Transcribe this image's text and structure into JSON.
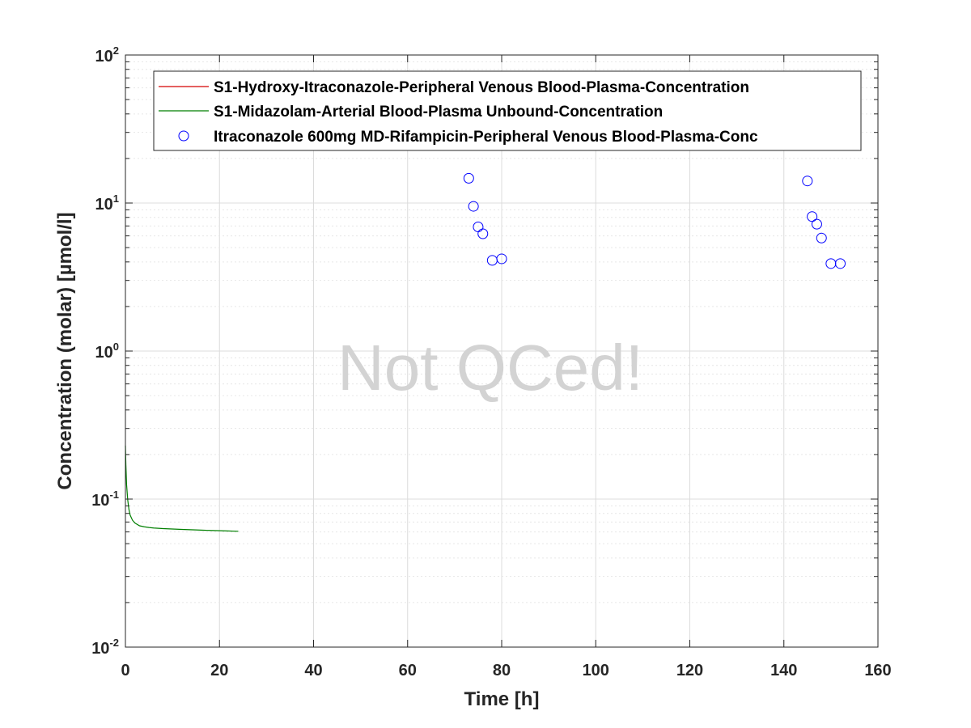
{
  "chart_data": {
    "type": "line",
    "title": "",
    "xlabel": "Time [h]",
    "ylabel": "Concentration (molar) [µmol/l]",
    "xlim": [
      0,
      160
    ],
    "ylim": [
      0.01,
      100
    ],
    "yscale": "log",
    "x_ticks": [
      "0",
      "20",
      "40",
      "60",
      "80",
      "100",
      "120",
      "140",
      "160"
    ],
    "x_tick_values": [
      0,
      20,
      40,
      60,
      80,
      100,
      120,
      140,
      160
    ],
    "y_tick_exponents": [
      "-2",
      "-1",
      "0",
      "1",
      "2"
    ],
    "y_tick_base": "10",
    "grid": true,
    "legend_position": "top-right",
    "watermark": "Not QCed!",
    "series": [
      {
        "name": "S1-Hydroxy-Itraconazole-Peripheral Venous Blood-Plasma-Concentration",
        "kind": "line",
        "color": "#d40000",
        "x": [],
        "y": []
      },
      {
        "name": "S1-Midazolam-Arterial Blood-Plasma Unbound-Concentration",
        "kind": "line",
        "color": "#007f00",
        "x": [
          0,
          0.1,
          0.25,
          0.5,
          0.75,
          1,
          1.5,
          2,
          3,
          4,
          5,
          6,
          8,
          10,
          12,
          15,
          18,
          21,
          24
        ],
        "y": [
          0.23,
          0.17,
          0.125,
          0.098,
          0.085,
          0.078,
          0.072,
          0.069,
          0.066,
          0.065,
          0.0643,
          0.0638,
          0.0632,
          0.0628,
          0.0624,
          0.0619,
          0.0614,
          0.061,
          0.0606
        ]
      },
      {
        "name": "Itraconazole 600mg MD-Rifampicin-Peripheral Venous Blood-Plasma-Conc",
        "kind": "scatter",
        "color": "#0000ff",
        "x": [
          73,
          74,
          75,
          76,
          78,
          80,
          145,
          146,
          147,
          148,
          150,
          152
        ],
        "y": [
          14.7,
          9.5,
          6.9,
          6.2,
          4.1,
          4.2,
          14.1,
          8.1,
          7.2,
          5.8,
          3.9,
          3.9
        ]
      }
    ]
  }
}
